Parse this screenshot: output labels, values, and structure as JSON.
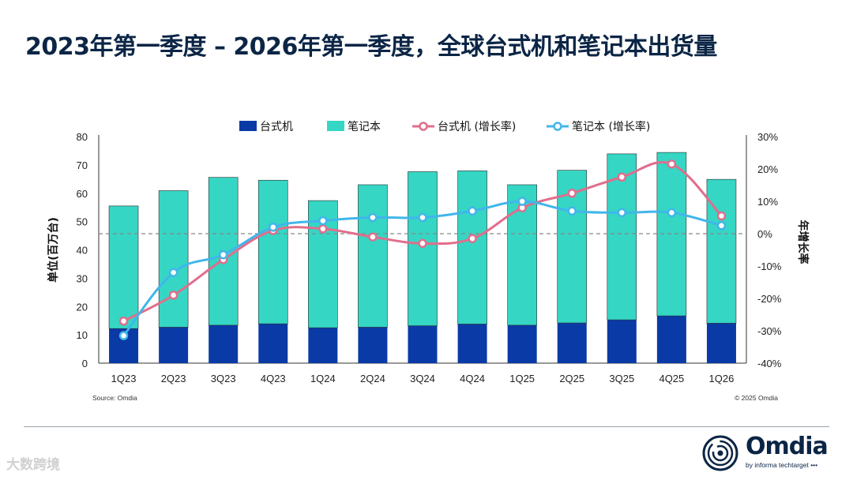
{
  "title": "2023年第一季度 – 2026年第一季度，全球台式机和笔记本出货量",
  "source": "Source: Omdia",
  "copyright": "© 2025 Omdia",
  "logo": {
    "name": "Omdia",
    "sub": "by informa techtarget •••"
  },
  "watermark": "大数跨境",
  "colors": {
    "title": "#0b2545",
    "desktop_bar": "#0a3aa6",
    "notebook_bar": "#35d6c4",
    "desktop_line": "#e06e8c",
    "notebook_line": "#41b6ea",
    "zero_line": "#888888"
  },
  "chart_data": {
    "type": "bar",
    "categories": [
      "1Q23",
      "2Q23",
      "3Q23",
      "4Q23",
      "1Q24",
      "2Q24",
      "3Q24",
      "4Q24",
      "1Q25",
      "2Q25",
      "3Q25",
      "4Q25",
      "1Q26"
    ],
    "series": [
      {
        "name": "台式机",
        "kind": "stacked-bar",
        "axis": "left",
        "values": [
          12.2,
          12.7,
          13.4,
          13.9,
          12.5,
          12.7,
          13.2,
          13.8,
          13.4,
          14.2,
          15.3,
          16.7,
          14.1
        ]
      },
      {
        "name": "笔记本",
        "kind": "stacked-bar",
        "axis": "left",
        "values": [
          43.3,
          48.2,
          52.2,
          50.7,
          44.9,
          50.3,
          54.4,
          54.1,
          49.6,
          53.9,
          58.6,
          57.7,
          50.8
        ]
      },
      {
        "name": "台式机 (增长率)",
        "kind": "line",
        "axis": "right",
        "values": [
          -27,
          -19,
          -8,
          1,
          1.5,
          -1,
          -3,
          -1.5,
          8,
          12.5,
          17.5,
          21.5,
          5.5
        ]
      },
      {
        "name": "笔记本 (增长率)",
        "kind": "line",
        "axis": "right",
        "values": [
          -31.5,
          -12,
          -6.5,
          2,
          4,
          5,
          5,
          7,
          10,
          7,
          6.5,
          6.5,
          2.5
        ]
      }
    ],
    "ylabel": "单位(百万台)",
    "y2label": "年增长率",
    "ylim": [
      0,
      80
    ],
    "yticks": [
      0,
      10,
      20,
      30,
      40,
      50,
      60,
      70,
      80
    ],
    "y2lim": [
      -40,
      30
    ],
    "y2ticks": [
      "-40%",
      "-30%",
      "-20%",
      "-10%",
      "0%",
      "10%",
      "20%",
      "30%"
    ],
    "legend_position": "top",
    "grid": false
  }
}
